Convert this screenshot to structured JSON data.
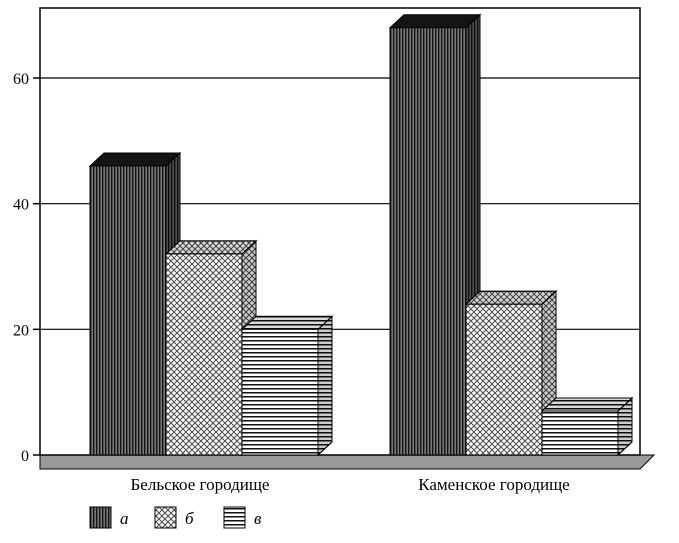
{
  "chart_data": {
    "type": "bar",
    "style": "3d-bars-hatched",
    "title": "",
    "categories": [
      "Бельское городище",
      "Каменское городище"
    ],
    "series": [
      {
        "name": "а",
        "values": [
          46,
          68
        ],
        "pattern": "vertical-hatch-dark"
      },
      {
        "name": "б",
        "values": [
          32,
          24
        ],
        "pattern": "diagonal-crosshatch"
      },
      {
        "name": "в",
        "values": [
          20,
          7
        ],
        "pattern": "horizontal-hatch"
      }
    ],
    "yticks": [
      0,
      20,
      40,
      60
    ],
    "ylim": [
      0,
      71
    ],
    "xlabel": "",
    "ylabel": "",
    "grid": "horizontal",
    "legend": [
      "а",
      "б",
      "в"
    ],
    "legend_position": "bottom-left"
  },
  "colors": {
    "bar_a_front": "#787878",
    "hatch_dark": "#141414",
    "hatch_gray": "#4a4a4a",
    "floor": "#999999",
    "frame": "#000000",
    "background": "#ffffff"
  }
}
